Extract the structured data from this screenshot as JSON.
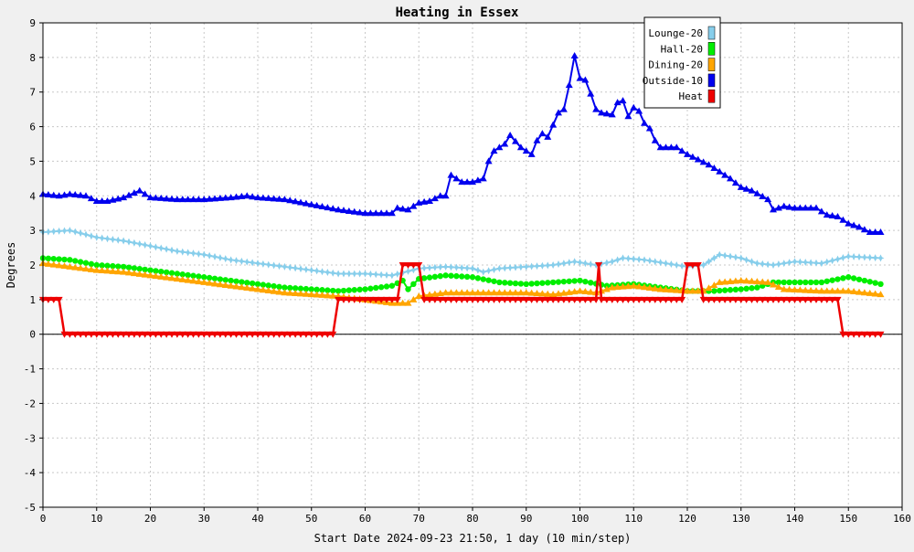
{
  "chart_data": {
    "type": "line",
    "title": "Heating in Essex",
    "xlabel": "Start Date 2024-09-23 21:50, 1 day (10 min/step)",
    "ylabel": "Degrees",
    "xlim": [
      0,
      160
    ],
    "ylim": [
      -5,
      9
    ],
    "x_ticks": [
      0,
      10,
      20,
      30,
      40,
      50,
      60,
      70,
      80,
      90,
      100,
      110,
      120,
      130,
      140,
      150,
      160
    ],
    "y_ticks": [
      -5,
      -4,
      -3,
      -2,
      -1,
      0,
      1,
      2,
      3,
      4,
      5,
      6,
      7,
      8,
      9
    ],
    "grid": true,
    "legend_position": "top-right",
    "series": [
      {
        "name": "Lounge-20",
        "color": "#87ceeb",
        "marker": "star",
        "points": [
          [
            0,
            2.95
          ],
          [
            5,
            3.0
          ],
          [
            10,
            2.8
          ],
          [
            15,
            2.7
          ],
          [
            20,
            2.55
          ],
          [
            25,
            2.4
          ],
          [
            30,
            2.3
          ],
          [
            35,
            2.15
          ],
          [
            40,
            2.05
          ],
          [
            45,
            1.95
          ],
          [
            50,
            1.85
          ],
          [
            55,
            1.75
          ],
          [
            60,
            1.75
          ],
          [
            65,
            1.7
          ],
          [
            70,
            1.9
          ],
          [
            75,
            1.95
          ],
          [
            80,
            1.9
          ],
          [
            82,
            1.8
          ],
          [
            85,
            1.9
          ],
          [
            90,
            1.95
          ],
          [
            95,
            2.0
          ],
          [
            99,
            2.1
          ],
          [
            103,
            2.0
          ],
          [
            106,
            2.1
          ],
          [
            108,
            2.2
          ],
          [
            112,
            2.15
          ],
          [
            116,
            2.05
          ],
          [
            120,
            1.95
          ],
          [
            123,
            2.0
          ],
          [
            126,
            2.3
          ],
          [
            130,
            2.2
          ],
          [
            133,
            2.05
          ],
          [
            136,
            2.0
          ],
          [
            140,
            2.1
          ],
          [
            145,
            2.05
          ],
          [
            150,
            2.25
          ],
          [
            156,
            2.2
          ]
        ]
      },
      {
        "name": "Hall-20",
        "color": "#00ee00",
        "marker": "circle",
        "points": [
          [
            0,
            2.2
          ],
          [
            5,
            2.15
          ],
          [
            10,
            2.0
          ],
          [
            15,
            1.95
          ],
          [
            20,
            1.85
          ],
          [
            25,
            1.75
          ],
          [
            30,
            1.65
          ],
          [
            35,
            1.55
          ],
          [
            40,
            1.45
          ],
          [
            45,
            1.35
          ],
          [
            50,
            1.3
          ],
          [
            55,
            1.25
          ],
          [
            60,
            1.3
          ],
          [
            65,
            1.4
          ],
          [
            67,
            1.55
          ],
          [
            68,
            1.3
          ],
          [
            70,
            1.6
          ],
          [
            75,
            1.7
          ],
          [
            80,
            1.65
          ],
          [
            85,
            1.5
          ],
          [
            90,
            1.45
          ],
          [
            95,
            1.5
          ],
          [
            100,
            1.55
          ],
          [
            105,
            1.4
          ],
          [
            110,
            1.45
          ],
          [
            115,
            1.35
          ],
          [
            120,
            1.25
          ],
          [
            125,
            1.25
          ],
          [
            130,
            1.3
          ],
          [
            133,
            1.35
          ],
          [
            136,
            1.5
          ],
          [
            140,
            1.5
          ],
          [
            145,
            1.5
          ],
          [
            150,
            1.65
          ],
          [
            156,
            1.45
          ]
        ]
      },
      {
        "name": "Dining-20",
        "color": "#ffa500",
        "marker": "triangle",
        "points": [
          [
            0,
            2.05
          ],
          [
            5,
            1.95
          ],
          [
            10,
            1.85
          ],
          [
            15,
            1.8
          ],
          [
            20,
            1.7
          ],
          [
            25,
            1.6
          ],
          [
            30,
            1.5
          ],
          [
            35,
            1.4
          ],
          [
            40,
            1.3
          ],
          [
            45,
            1.2
          ],
          [
            50,
            1.15
          ],
          [
            55,
            1.1
          ],
          [
            60,
            1.0
          ],
          [
            65,
            0.9
          ],
          [
            68,
            0.9
          ],
          [
            70,
            1.1
          ],
          [
            75,
            1.2
          ],
          [
            80,
            1.2
          ],
          [
            85,
            1.2
          ],
          [
            90,
            1.2
          ],
          [
            95,
            1.15
          ],
          [
            100,
            1.25
          ],
          [
            103,
            1.2
          ],
          [
            106,
            1.35
          ],
          [
            110,
            1.4
          ],
          [
            115,
            1.3
          ],
          [
            120,
            1.25
          ],
          [
            123,
            1.25
          ],
          [
            126,
            1.5
          ],
          [
            130,
            1.55
          ],
          [
            135,
            1.5
          ],
          [
            138,
            1.3
          ],
          [
            145,
            1.25
          ],
          [
            150,
            1.25
          ],
          [
            156,
            1.15
          ]
        ]
      },
      {
        "name": "Outside-10",
        "color": "#0000ee",
        "marker": "triangle",
        "points": [
          [
            0,
            4.05
          ],
          [
            3,
            4.0
          ],
          [
            5,
            4.05
          ],
          [
            8,
            4.0
          ],
          [
            10,
            3.85
          ],
          [
            12,
            3.85
          ],
          [
            15,
            3.95
          ],
          [
            18,
            4.15
          ],
          [
            20,
            3.95
          ],
          [
            25,
            3.9
          ],
          [
            30,
            3.9
          ],
          [
            35,
            3.95
          ],
          [
            38,
            4.0
          ],
          [
            40,
            3.95
          ],
          [
            45,
            3.9
          ],
          [
            50,
            3.75
          ],
          [
            55,
            3.6
          ],
          [
            60,
            3.5
          ],
          [
            65,
            3.5
          ],
          [
            66,
            3.65
          ],
          [
            68,
            3.6
          ],
          [
            70,
            3.8
          ],
          [
            72,
            3.85
          ],
          [
            74,
            4.0
          ],
          [
            75,
            4.0
          ],
          [
            76,
            4.6
          ],
          [
            78,
            4.4
          ],
          [
            80,
            4.4
          ],
          [
            82,
            4.5
          ],
          [
            83,
            5.0
          ],
          [
            84,
            5.3
          ],
          [
            86,
            5.5
          ],
          [
            87,
            5.75
          ],
          [
            89,
            5.4
          ],
          [
            90,
            5.3
          ],
          [
            91,
            5.2
          ],
          [
            92,
            5.6
          ],
          [
            93,
            5.8
          ],
          [
            94,
            5.7
          ],
          [
            96,
            6.4
          ],
          [
            97,
            6.5
          ],
          [
            98,
            7.2
          ],
          [
            99,
            8.05
          ],
          [
            100,
            7.4
          ],
          [
            101,
            7.35
          ],
          [
            102,
            6.95
          ],
          [
            103,
            6.5
          ],
          [
            104,
            6.4
          ],
          [
            106,
            6.35
          ],
          [
            107,
            6.7
          ],
          [
            108,
            6.75
          ],
          [
            109,
            6.3
          ],
          [
            110,
            6.55
          ],
          [
            111,
            6.45
          ],
          [
            112,
            6.1
          ],
          [
            113,
            5.95
          ],
          [
            114,
            5.6
          ],
          [
            115,
            5.4
          ],
          [
            118,
            5.4
          ],
          [
            120,
            5.2
          ],
          [
            122,
            5.05
          ],
          [
            124,
            4.9
          ],
          [
            126,
            4.7
          ],
          [
            128,
            4.5
          ],
          [
            130,
            4.25
          ],
          [
            132,
            4.15
          ],
          [
            135,
            3.9
          ],
          [
            136,
            3.6
          ],
          [
            138,
            3.7
          ],
          [
            140,
            3.65
          ],
          [
            144,
            3.65
          ],
          [
            146,
            3.45
          ],
          [
            148,
            3.4
          ],
          [
            150,
            3.2
          ],
          [
            152,
            3.1
          ],
          [
            154,
            2.95
          ],
          [
            156,
            2.95
          ]
        ]
      },
      {
        "name": "Heat",
        "color": "#ee0000",
        "marker": "triangle-down",
        "step": true,
        "points": [
          [
            0,
            1
          ],
          [
            3,
            1
          ],
          [
            4,
            0
          ],
          [
            54,
            0
          ],
          [
            55,
            1
          ],
          [
            66,
            1
          ],
          [
            67,
            2
          ],
          [
            70,
            2
          ],
          [
            70.5,
            1
          ],
          [
            103,
            1
          ],
          [
            103.5,
            2
          ],
          [
            104,
            1
          ],
          [
            119,
            1
          ],
          [
            119.5,
            2
          ],
          [
            122,
            2
          ],
          [
            123,
            1
          ],
          [
            148,
            1
          ],
          [
            149,
            0
          ],
          [
            156,
            0
          ]
        ]
      }
    ]
  }
}
